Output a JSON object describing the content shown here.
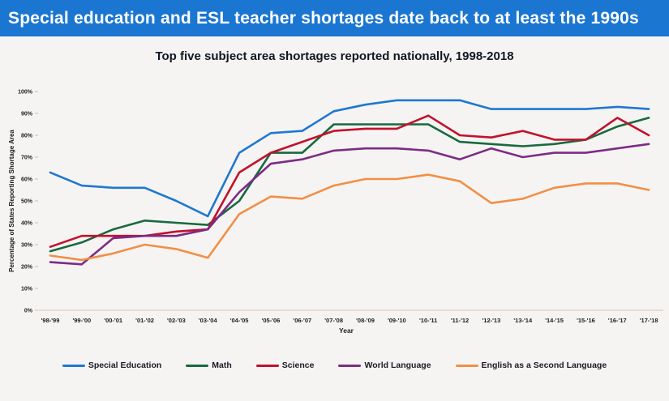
{
  "header": {
    "title": "Special education and ESL teacher shortages date back to at least the 1990s",
    "bg_color": "#1b76d2",
    "text_color": "#ffffff"
  },
  "chart_data": {
    "type": "line",
    "title": "Top five subject area shortages reported nationally, 1998-2018",
    "xlabel": "Year",
    "ylabel": "Percentage of States Reporting Shortage Area",
    "ylim": [
      0,
      100
    ],
    "y_tick_labels": [
      "0%",
      "10%",
      "20%",
      "30%",
      "40%",
      "50%",
      "60%",
      "70%",
      "80%",
      "90%",
      "100%"
    ],
    "grid": false,
    "legend_position": "bottom",
    "categories": [
      "'98-'99",
      "'99-'00",
      "'00-'01",
      "'01-'02",
      "'02-'03",
      "'03-'04",
      "'04-'05",
      "'05-'06",
      "'06-'07",
      "'07-'08",
      "'08-'09",
      "'09-'10",
      "'10-'11",
      "'11-'12",
      "'12-'13",
      "'13-'14",
      "'14-'15",
      "'15-'16",
      "'16-'17",
      "'17-'18"
    ],
    "series": [
      {
        "name": "Special Education",
        "color": "#1e78d2",
        "values": [
          63,
          57,
          56,
          56,
          50,
          43,
          72,
          81,
          82,
          91,
          94,
          96,
          96,
          96,
          92,
          92,
          92,
          92,
          93,
          92
        ]
      },
      {
        "name": "Math",
        "color": "#186a3f",
        "values": [
          27,
          31,
          37,
          41,
          40,
          39,
          50,
          72,
          72,
          85,
          85,
          85,
          85,
          77,
          76,
          75,
          76,
          78,
          84,
          88
        ]
      },
      {
        "name": "Science",
        "color": "#c2112d",
        "values": [
          29,
          34,
          34,
          34,
          36,
          37,
          63,
          72,
          77,
          82,
          83,
          83,
          89,
          80,
          79,
          82,
          78,
          78,
          88,
          80
        ]
      },
      {
        "name": "World Language",
        "color": "#7d2b85",
        "values": [
          22,
          21,
          33,
          34,
          34,
          37,
          54,
          67,
          69,
          73,
          74,
          74,
          73,
          69,
          74,
          70,
          72,
          72,
          74,
          76
        ]
      },
      {
        "name": "English as a Second Language",
        "color": "#f18f45",
        "values": [
          25,
          23,
          26,
          30,
          28,
          24,
          44,
          52,
          51,
          57,
          60,
          60,
          62,
          59,
          49,
          51,
          56,
          58,
          58,
          55
        ]
      }
    ],
    "style": {
      "axis_line_color": "#eed9d0",
      "tick_color": "#c2bfbc",
      "text_color": "#1d1d1d"
    }
  }
}
